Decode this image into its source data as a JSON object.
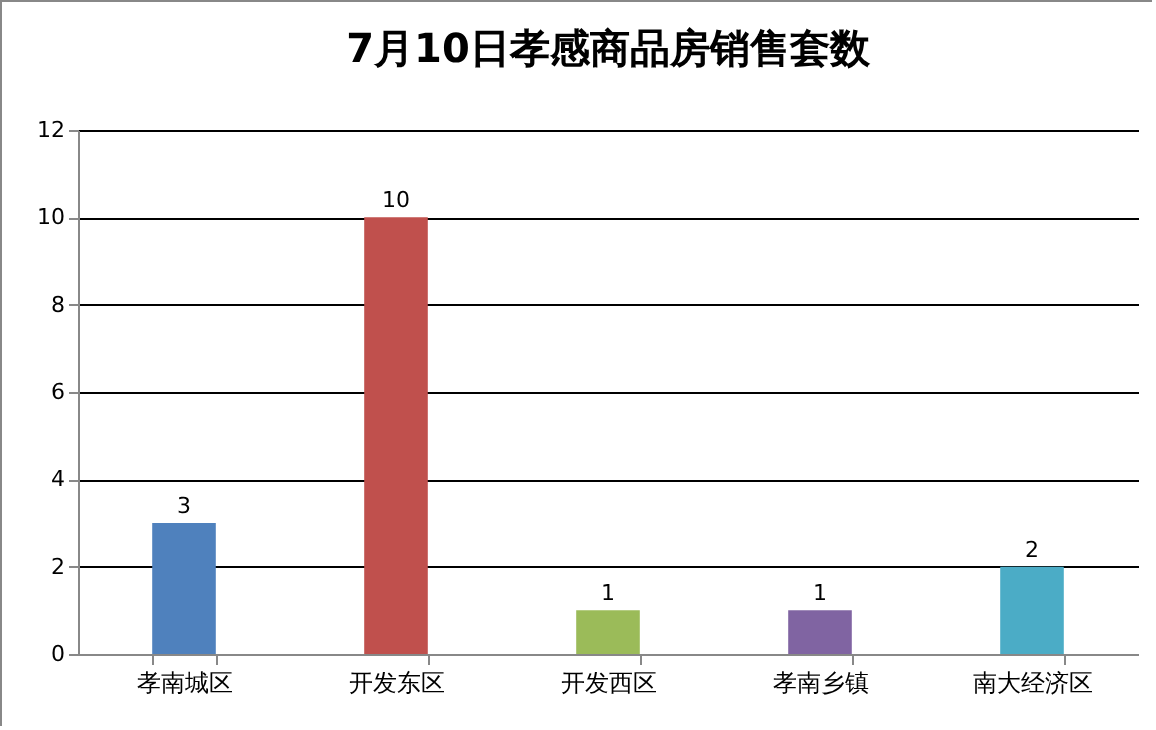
{
  "chart_data": {
    "type": "bar",
    "title": "7月10日孝感商品房销售套数",
    "categories": [
      "孝南城区",
      "开发东区",
      "开发西区",
      "孝南乡镇",
      "南大经济区"
    ],
    "values": [
      3,
      10,
      1,
      1,
      2
    ],
    "colors": [
      "#4f81bd",
      "#c0504d",
      "#9bbb59",
      "#8064a2",
      "#4bacc6"
    ],
    "ylim": [
      0,
      12
    ],
    "yticks": [
      0,
      2,
      4,
      6,
      8,
      10,
      12
    ],
    "grid": "y",
    "data_labels": true
  }
}
